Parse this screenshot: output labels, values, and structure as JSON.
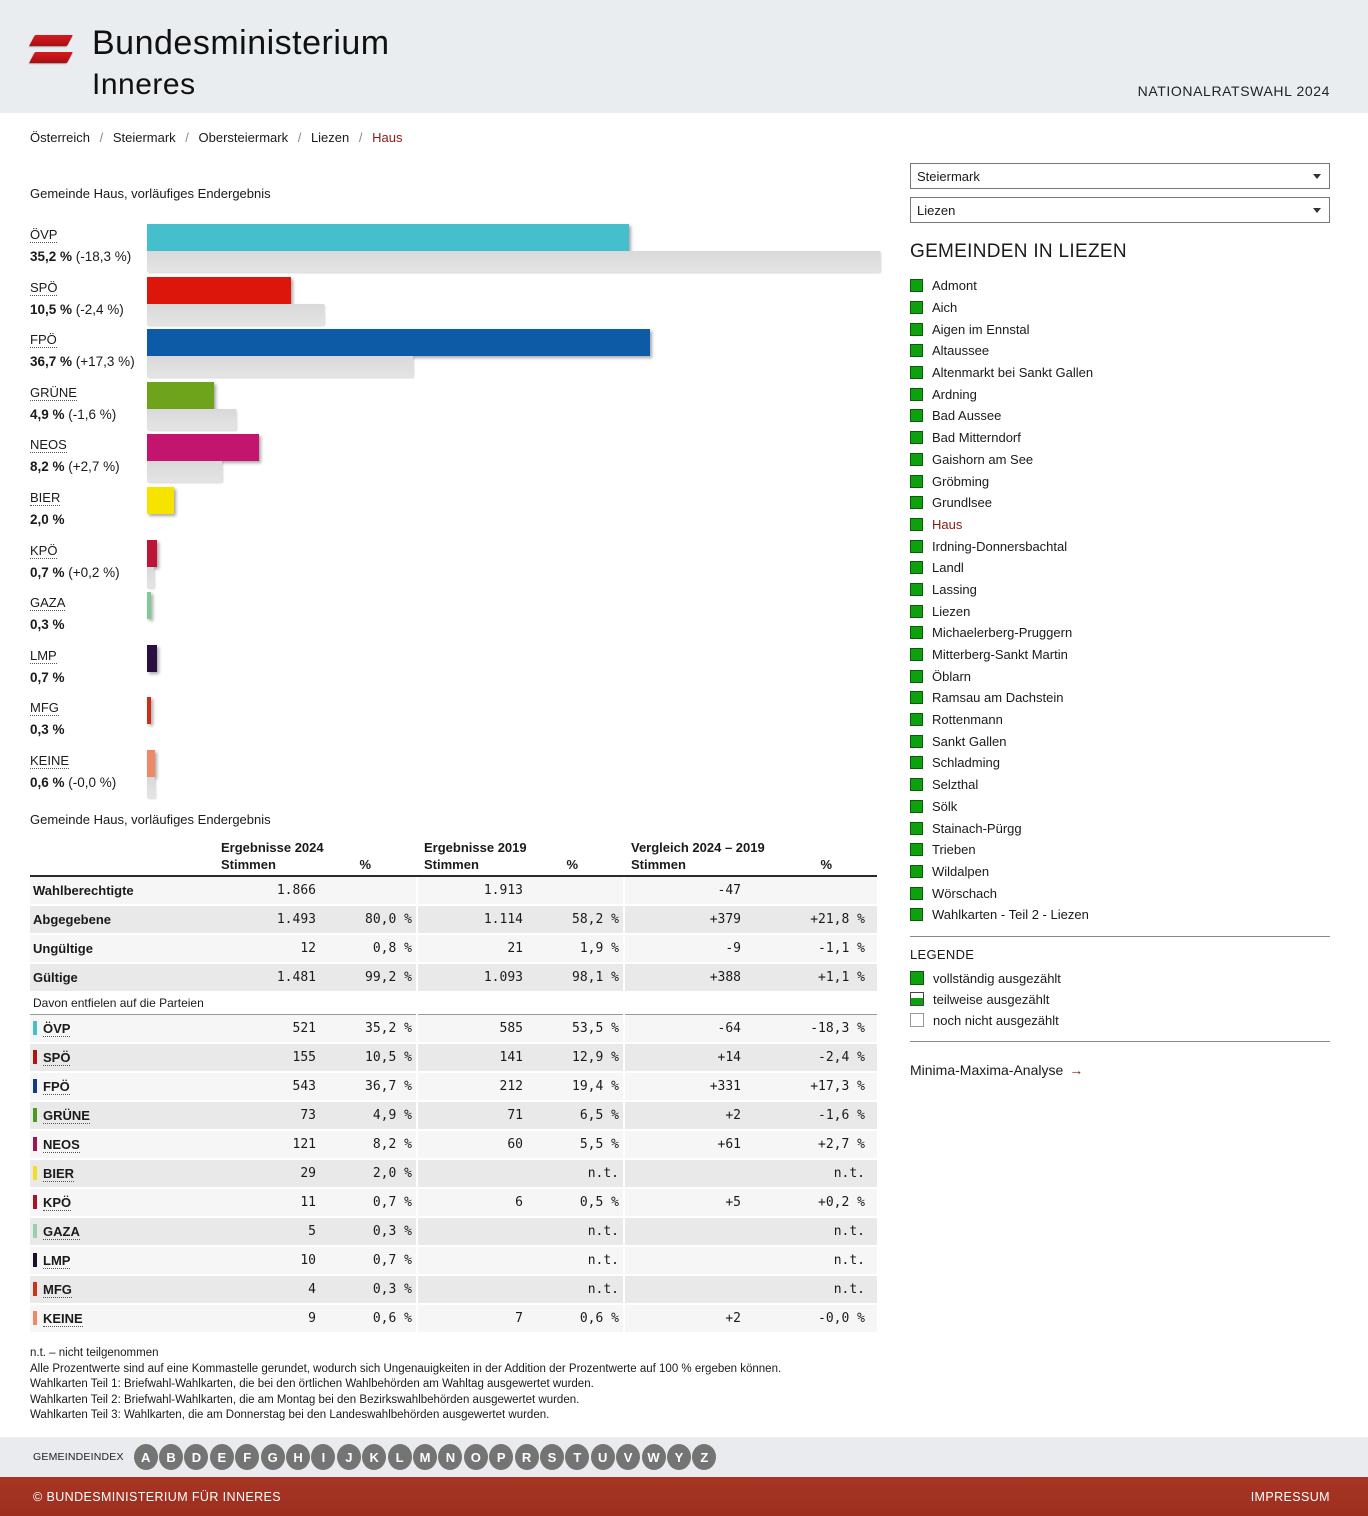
{
  "header": {
    "ministry_line1": "Bundesministerium",
    "ministry_line2": "Inneres",
    "event": "NATIONALRATSWAHL 2024"
  },
  "breadcrumb": {
    "items": [
      "Österreich",
      "Steiermark",
      "Obersteiermark",
      "Liezen"
    ],
    "current": "Haus",
    "separator": "/"
  },
  "chart_title": "Gemeinde Haus, vorläufiges Endergebnis",
  "table_title": "Gemeinde Haus, vorläufiges Endergebnis",
  "chart_data": {
    "type": "bar",
    "title": "Gemeinde Haus, vorläufiges Endergebnis",
    "orientation": "horizontal",
    "unit": "%",
    "note": "colored bar = 2024 result, gray bar = 2019 result",
    "series": [
      {
        "party": "ÖVP",
        "color": "#45bfcc",
        "value_2024": 35.2,
        "value_2019": 53.5,
        "pct_label": "35,2 %",
        "diff_label": "(-18,3 %)"
      },
      {
        "party": "SPÖ",
        "color": "#dd160c",
        "value_2024": 10.5,
        "value_2019": 12.9,
        "pct_label": "10,5 %",
        "diff_label": "(-2,4 %)"
      },
      {
        "party": "FPÖ",
        "color": "#0d5aa7",
        "value_2024": 36.7,
        "value_2019": 19.4,
        "pct_label": "36,7 %",
        "diff_label": "(+17,3 %)"
      },
      {
        "party": "GRÜNE",
        "color": "#6ea41c",
        "value_2024": 4.9,
        "value_2019": 6.5,
        "pct_label": "4,9 %",
        "diff_label": "(-1,6 %)"
      },
      {
        "party": "NEOS",
        "color": "#c4156e",
        "value_2024": 8.2,
        "value_2019": 5.5,
        "pct_label": "8,2 %",
        "diff_label": "(+2,7 %)"
      },
      {
        "party": "BIER",
        "color": "#f6e300",
        "value_2024": 2.0,
        "value_2019": null,
        "pct_label": "2,0 %",
        "diff_label": ""
      },
      {
        "party": "KPÖ",
        "color": "#bc1538",
        "value_2024": 0.7,
        "value_2019": 0.5,
        "pct_label": "0,7 %",
        "diff_label": "(+0,2 %)"
      },
      {
        "party": "GAZA",
        "color": "#82ca93",
        "value_2024": 0.3,
        "value_2019": null,
        "pct_label": "0,3 %",
        "diff_label": ""
      },
      {
        "party": "LMP",
        "color": "#2a0e3f",
        "value_2024": 0.7,
        "value_2019": null,
        "pct_label": "0,7 %",
        "diff_label": ""
      },
      {
        "party": "MFG",
        "color": "#cd2e16",
        "value_2024": 0.3,
        "value_2019": null,
        "pct_label": "0,3 %",
        "diff_label": ""
      },
      {
        "party": "KEINE",
        "color": "#ef8866",
        "value_2024": 0.6,
        "value_2019": 0.6,
        "pct_label": "0,6 %",
        "diff_label": "(-0,0 %)"
      }
    ]
  },
  "table": {
    "col_groups": [
      "Ergebnisse 2024",
      "Ergebnisse 2019",
      "Vergleich 2024 – 2019"
    ],
    "sub_header_stimmen": "Stimmen",
    "sub_header_pct": "%",
    "summary_rows": [
      {
        "label": "Wahlberechtigte",
        "v24_st": "1.866",
        "v24_pct": "",
        "v19_st": "1.913",
        "v19_pct": "",
        "cmp_st": "-47",
        "cmp_pct": ""
      },
      {
        "label": "Abgegebene",
        "v24_st": "1.493",
        "v24_pct": "80,0 %",
        "v19_st": "1.114",
        "v19_pct": "58,2 %",
        "cmp_st": "+379",
        "cmp_pct": "+21,8 %"
      },
      {
        "label": "Ungültige",
        "v24_st": "12",
        "v24_pct": "0,8 %",
        "v19_st": "21",
        "v19_pct": "1,9 %",
        "cmp_st": "-9",
        "cmp_pct": "-1,1 %"
      },
      {
        "label": "Gültige",
        "v24_st": "1.481",
        "v24_pct": "99,2 %",
        "v19_st": "1.093",
        "v19_pct": "98,1 %",
        "cmp_st": "+388",
        "cmp_pct": "+1,1 %"
      }
    ],
    "section_label": "Davon entfielen auf die Parteien",
    "party_rows": [
      {
        "party": "ÖVP",
        "color": "#45bfcc",
        "v24_st": "521",
        "v24_pct": "35,2 %",
        "v19_st": "585",
        "v19_pct": "53,5 %",
        "cmp_st": "-64",
        "cmp_pct": "-18,3 %"
      },
      {
        "party": "SPÖ",
        "color": "#b01312",
        "v24_st": "155",
        "v24_pct": "10,5 %",
        "v19_st": "141",
        "v19_pct": "12,9 %",
        "cmp_st": "+14",
        "cmp_pct": "-2,4 %"
      },
      {
        "party": "FPÖ",
        "color": "#13388c",
        "v24_st": "543",
        "v24_pct": "36,7 %",
        "v19_st": "212",
        "v19_pct": "19,4 %",
        "cmp_st": "+331",
        "cmp_pct": "+17,3 %"
      },
      {
        "party": "GRÜNE",
        "color": "#4c9a1f",
        "v24_st": "73",
        "v24_pct": "4,9 %",
        "v19_st": "71",
        "v19_pct": "6,5 %",
        "cmp_st": "+2",
        "cmp_pct": "-1,6 %"
      },
      {
        "party": "NEOS",
        "color": "#a11257",
        "v24_st": "121",
        "v24_pct": "8,2 %",
        "v19_st": "60",
        "v19_pct": "5,5 %",
        "cmp_st": "+61",
        "cmp_pct": "+2,7 %"
      },
      {
        "party": "BIER",
        "color": "#f3dd2a",
        "v24_st": "29",
        "v24_pct": "2,0 %",
        "v19_st": "",
        "v19_pct": "n.t.",
        "cmp_st": "",
        "cmp_pct": "n.t."
      },
      {
        "party": "KPÖ",
        "color": "#a91325",
        "v24_st": "11",
        "v24_pct": "0,7 %",
        "v19_st": "6",
        "v19_pct": "0,5 %",
        "cmp_st": "+5",
        "cmp_pct": "+0,2 %"
      },
      {
        "party": "GAZA",
        "color": "#9bcfa8",
        "v24_st": "5",
        "v24_pct": "0,3 %",
        "v19_st": "",
        "v19_pct": "n.t.",
        "cmp_st": "",
        "cmp_pct": "n.t."
      },
      {
        "party": "LMP",
        "color": "#1d0d2e",
        "v24_st": "10",
        "v24_pct": "0,7 %",
        "v19_st": "",
        "v19_pct": "n.t.",
        "cmp_st": "",
        "cmp_pct": "n.t."
      },
      {
        "party": "MFG",
        "color": "#cc3418",
        "v24_st": "4",
        "v24_pct": "0,3 %",
        "v19_st": "",
        "v19_pct": "n.t.",
        "cmp_st": "",
        "cmp_pct": "n.t."
      },
      {
        "party": "KEINE",
        "color": "#ec8a64",
        "v24_st": "9",
        "v24_pct": "0,6 %",
        "v19_st": "7",
        "v19_pct": "0,6 %",
        "cmp_st": "+2",
        "cmp_pct": "-0,0 %"
      }
    ]
  },
  "footnotes": [
    "n.t. – nicht teilgenommen",
    "Alle Prozentwerte sind auf eine Kommastelle gerundet, wodurch sich Ungenauigkeiten in der Addition der Prozentwerte auf 100 % ergeben können.",
    "Wahlkarten Teil 1: Briefwahl-Wahlkarten, die bei den örtlichen Wahlbehörden am Wahltag ausgewertet wurden.",
    "Wahlkarten Teil 2: Briefwahl-Wahlkarten, die am Montag bei den Bezirkswahlbehörden ausgewertet wurden.",
    "Wahlkarten Teil 3: Wahlkarten, die am Donnerstag bei den Landeswahlbehörden ausgewertet wurden."
  ],
  "sidebar": {
    "state_select_value": "Steiermark",
    "district_select_value": "Liezen",
    "list_title": "GEMEINDEN IN LIEZEN",
    "municipalities": [
      {
        "name": "Admont",
        "status": "full",
        "current": false
      },
      {
        "name": "Aich",
        "status": "full",
        "current": false
      },
      {
        "name": "Aigen im Ennstal",
        "status": "full",
        "current": false
      },
      {
        "name": "Altaussee",
        "status": "full",
        "current": false
      },
      {
        "name": "Altenmarkt bei Sankt Gallen",
        "status": "full",
        "current": false
      },
      {
        "name": "Ardning",
        "status": "full",
        "current": false
      },
      {
        "name": "Bad Aussee",
        "status": "full",
        "current": false
      },
      {
        "name": "Bad Mitterndorf",
        "status": "full",
        "current": false
      },
      {
        "name": "Gaishorn am See",
        "status": "full",
        "current": false
      },
      {
        "name": "Gröbming",
        "status": "full",
        "current": false
      },
      {
        "name": "Grundlsee",
        "status": "full",
        "current": false
      },
      {
        "name": "Haus",
        "status": "full",
        "current": true
      },
      {
        "name": "Irdning-Donnersbachtal",
        "status": "full",
        "current": false
      },
      {
        "name": "Landl",
        "status": "full",
        "current": false
      },
      {
        "name": "Lassing",
        "status": "full",
        "current": false
      },
      {
        "name": "Liezen",
        "status": "full",
        "current": false
      },
      {
        "name": "Michaelerberg-Pruggern",
        "status": "full",
        "current": false
      },
      {
        "name": "Mitterberg-Sankt Martin",
        "status": "full",
        "current": false
      },
      {
        "name": "Öblarn",
        "status": "full",
        "current": false
      },
      {
        "name": "Ramsau am Dachstein",
        "status": "full",
        "current": false
      },
      {
        "name": "Rottenmann",
        "status": "full",
        "current": false
      },
      {
        "name": "Sankt Gallen",
        "status": "full",
        "current": false
      },
      {
        "name": "Schladming",
        "status": "full",
        "current": false
      },
      {
        "name": "Selzthal",
        "status": "full",
        "current": false
      },
      {
        "name": "Sölk",
        "status": "full",
        "current": false
      },
      {
        "name": "Stainach-Pürgg",
        "status": "full",
        "current": false
      },
      {
        "name": "Trieben",
        "status": "full",
        "current": false
      },
      {
        "name": "Wildalpen",
        "status": "full",
        "current": false
      },
      {
        "name": "Wörschach",
        "status": "full",
        "current": false
      },
      {
        "name": "Wahlkarten - Teil 2 - Liezen",
        "status": "full",
        "current": false
      }
    ],
    "legend": {
      "title": "LEGENDE",
      "items": [
        {
          "label": "vollständig ausgezählt",
          "type": "full"
        },
        {
          "label": "teilweise ausgezählt",
          "type": "partial"
        },
        {
          "label": "noch nicht ausgezählt",
          "type": "none"
        }
      ]
    },
    "analysis_link": "Minima-Maxima-Analyse",
    "analysis_arrow": "→"
  },
  "footer": {
    "index_label": "GEMEINDEINDEX",
    "letters": [
      "A",
      "B",
      "D",
      "E",
      "F",
      "G",
      "H",
      "I",
      "J",
      "K",
      "L",
      "M",
      "N",
      "O",
      "P",
      "R",
      "S",
      "T",
      "U",
      "V",
      "W",
      "Y",
      "Z"
    ],
    "copyright": "© BUNDESMINISTERIUM FÜR INNERES",
    "impressum": "IMPRESSUM"
  },
  "colors": {
    "header_band": "#e9edf0",
    "flag_red": "#c8161d",
    "footer_red": "#a23021",
    "link_red": "#8c1b10",
    "status_green": "#0da10d",
    "prev_bar_gray": "#dcdcdc"
  }
}
